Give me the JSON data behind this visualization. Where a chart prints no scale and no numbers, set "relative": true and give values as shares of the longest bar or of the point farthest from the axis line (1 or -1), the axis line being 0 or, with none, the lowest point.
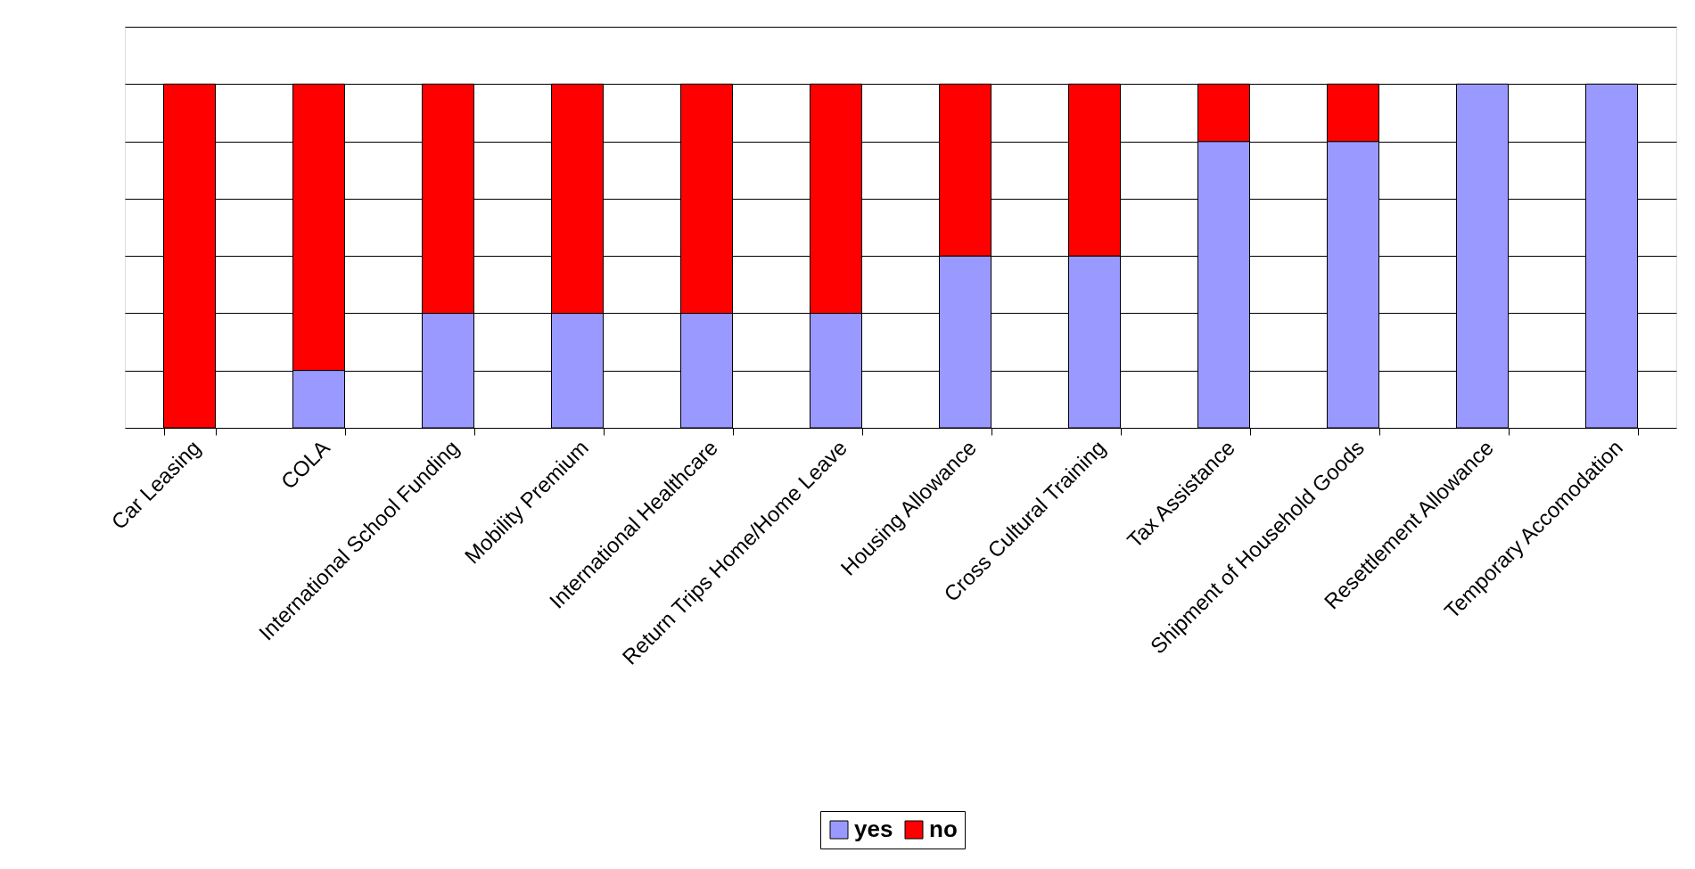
{
  "chart_data": {
    "type": "bar",
    "stacked": true,
    "relative": true,
    "grid": "y",
    "legend": "bottom",
    "categories": [
      "Car Leasing",
      "COLA",
      "International School Funding",
      "Mobility Premium",
      "International Healthcare",
      "Return Trips Home/Home Leave",
      "Housing Allowance",
      "Cross Cultural Training",
      "Tax Assistance",
      "Shipment of Household Goods",
      "Resettlement Allowance",
      "Temporary Accomodation"
    ],
    "series": [
      {
        "name": "yes",
        "color": "#9999ff",
        "values": [
          0,
          0.167,
          0.333,
          0.333,
          0.333,
          0.333,
          0.5,
          0.5,
          0.833,
          0.833,
          1,
          1
        ]
      },
      {
        "name": "no",
        "color": "#ff0000",
        "values": [
          1,
          0.833,
          0.667,
          0.667,
          0.667,
          0.667,
          0.5,
          0.5,
          0.167,
          0.167,
          0,
          0
        ]
      }
    ]
  }
}
